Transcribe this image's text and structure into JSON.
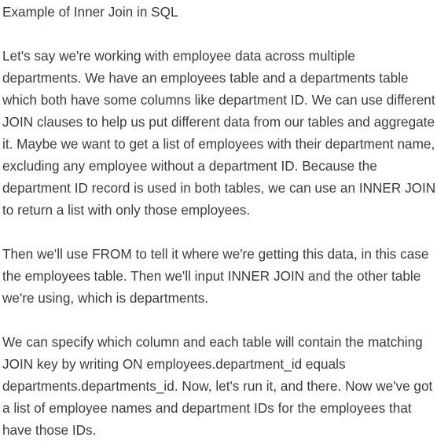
{
  "document": {
    "title": "Example of Inner Join in SQL",
    "paragraphs": [
      "Let's say we're working with employee data across multiple departments. We have an employees table and a departments table which both have some columns like department ID. We can use different JOIN clauses to help us put different data from our tables and aggregate it. Maybe we want to get a list of employees with their department name, excluding any employee without a department ID. Because the department ID record is used in both tables, we can use an INNER JOIN to return a list with only those employees.",
      "Then we'll use FROM to tell it where we're getting this data, in this case the employees table. Then we'll input INNER JOIN and the other table we're using, which is departments.",
      "We can specify which column and each table will contain the matching JOIN key by writing ON employees.department_id equals departments.departments_id. Now, let's run it, and there. Now we've got a list of employee names and department IDs for the employees that have those IDs."
    ]
  }
}
